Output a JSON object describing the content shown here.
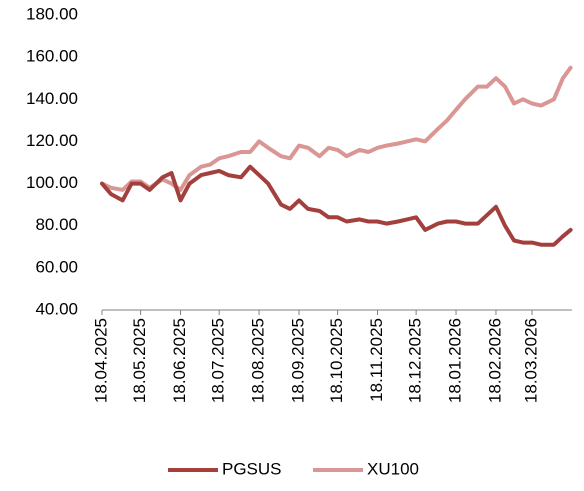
{
  "chart_data": {
    "type": "line",
    "x": [
      "18.04.2025",
      "25.04.2025",
      "04.05.2025",
      "11.05.2025",
      "18.05.2025",
      "25.05.2025",
      "04.06.2025",
      "11.06.2025",
      "18.06.2025",
      "25.06.2025",
      "04.07.2025",
      "11.07.2025",
      "18.07.2025",
      "25.07.2025",
      "04.08.2025",
      "11.08.2025",
      "18.08.2025",
      "25.08.2025",
      "04.09.2025",
      "11.09.2025",
      "18.09.2025",
      "25.09.2025",
      "04.10.2025",
      "11.10.2025",
      "18.10.2025",
      "25.10.2025",
      "04.11.2025",
      "11.11.2025",
      "18.11.2025",
      "25.11.2025",
      "04.12.2025",
      "11.12.2025",
      "18.12.2025",
      "25.12.2025",
      "04.01.2026",
      "11.01.2026",
      "18.01.2026",
      "25.01.2026",
      "04.02.2026",
      "11.02.2026",
      "18.02.2026",
      "25.02.2026",
      "04.03.2026",
      "11.03.2026",
      "18.03.2026",
      "25.03.2026",
      "04.04.2026",
      "11.04.2026",
      "17.04.2026"
    ],
    "series": [
      {
        "name": "PGSUS",
        "color": "#a3403e",
        "values": [
          100,
          95,
          92,
          100,
          100,
          97,
          103,
          105,
          92,
          100,
          104,
          105,
          106,
          104,
          103,
          108,
          104,
          100,
          90,
          88,
          92,
          88,
          87,
          84,
          84,
          82,
          83,
          82,
          82,
          81,
          82,
          83,
          84,
          78,
          81,
          82,
          82,
          81,
          81,
          85,
          89,
          80,
          73,
          72,
          72,
          71,
          71,
          75,
          78
        ]
      },
      {
        "name": "XU100",
        "color": "#d99694",
        "values": [
          100,
          98,
          97,
          101,
          101,
          98,
          102,
          100,
          97,
          104,
          108,
          109,
          112,
          113,
          115,
          115,
          120,
          117,
          113,
          112,
          118,
          117,
          113,
          117,
          116,
          113,
          116,
          115,
          117,
          118,
          119,
          120,
          121,
          120,
          126,
          130,
          135,
          140,
          146,
          146,
          150,
          146,
          138,
          140,
          138,
          137,
          140,
          150,
          155
        ]
      }
    ],
    "xlim": [
      "18.04.2025",
      "18.04.2026"
    ],
    "xticks": [
      "18.04.2025",
      "18.05.2025",
      "18.06.2025",
      "18.07.2025",
      "18.08.2025",
      "18.09.2025",
      "18.10.2025",
      "18.11.2025",
      "18.12.2025",
      "18.01.2026",
      "18.02.2026",
      "18.03.2026"
    ],
    "ylim": [
      40,
      180
    ],
    "yticks": [
      {
        "value": 40,
        "label": "40.00"
      },
      {
        "value": 60,
        "label": "60.00"
      },
      {
        "value": 80,
        "label": "80.00"
      },
      {
        "value": 100,
        "label": "100.00"
      },
      {
        "value": 120,
        "label": "120.00"
      },
      {
        "value": 140,
        "label": "140.00"
      },
      {
        "value": 160,
        "label": "160.00"
      },
      {
        "value": 180,
        "label": "180.00"
      }
    ],
    "legend": "bottom"
  }
}
